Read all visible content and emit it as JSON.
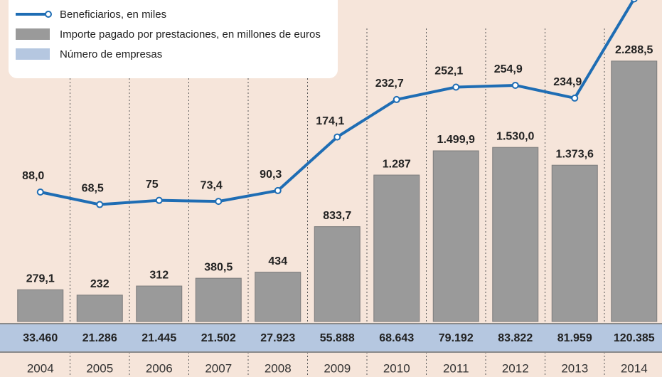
{
  "chart_data": {
    "type": "bar",
    "categories": [
      "2004",
      "2005",
      "2006",
      "2007",
      "2008",
      "2009",
      "2010",
      "2011",
      "2012",
      "2013",
      "2014"
    ],
    "series": [
      {
        "name": "Beneficiarios, en miles",
        "type": "line",
        "color": "#1e6db4",
        "values": [
          88.0,
          68.5,
          75,
          73.4,
          90.3,
          174.1,
          232.7,
          252.1,
          254.9,
          234.9,
          390
        ],
        "value_labels": [
          "88,0",
          "68,5",
          "75",
          "73,4",
          "90,3",
          "174,1",
          "232,7",
          "252,1",
          "254,9",
          "234,9",
          null
        ]
      },
      {
        "name": "Importe pagado por prestaciones, en millones de euros",
        "type": "bar",
        "color": "#9a9a9a",
        "values": [
          279.1,
          232,
          312,
          380.5,
          434,
          833.7,
          1287,
          1499.9,
          1530.0,
          1373.6,
          2288.5
        ],
        "value_labels": [
          "279,1",
          "232",
          "312",
          "380,5",
          "434",
          "833,7",
          "1.287",
          "1.499,9",
          "1.530,0",
          "1.373,6",
          "2.288,5"
        ]
      },
      {
        "name": "Número de empresas",
        "type": "table",
        "color": "#b5c7e0",
        "values": [
          33460,
          21286,
          21445,
          21502,
          27923,
          55888,
          68643,
          79192,
          83822,
          81959,
          120385
        ],
        "value_labels": [
          "33.460",
          "21.286",
          "21.445",
          "21.502",
          "27.923",
          "55.888",
          "68.643",
          "79.192",
          "83.822",
          "81.959",
          "120.385"
        ]
      }
    ]
  }
}
